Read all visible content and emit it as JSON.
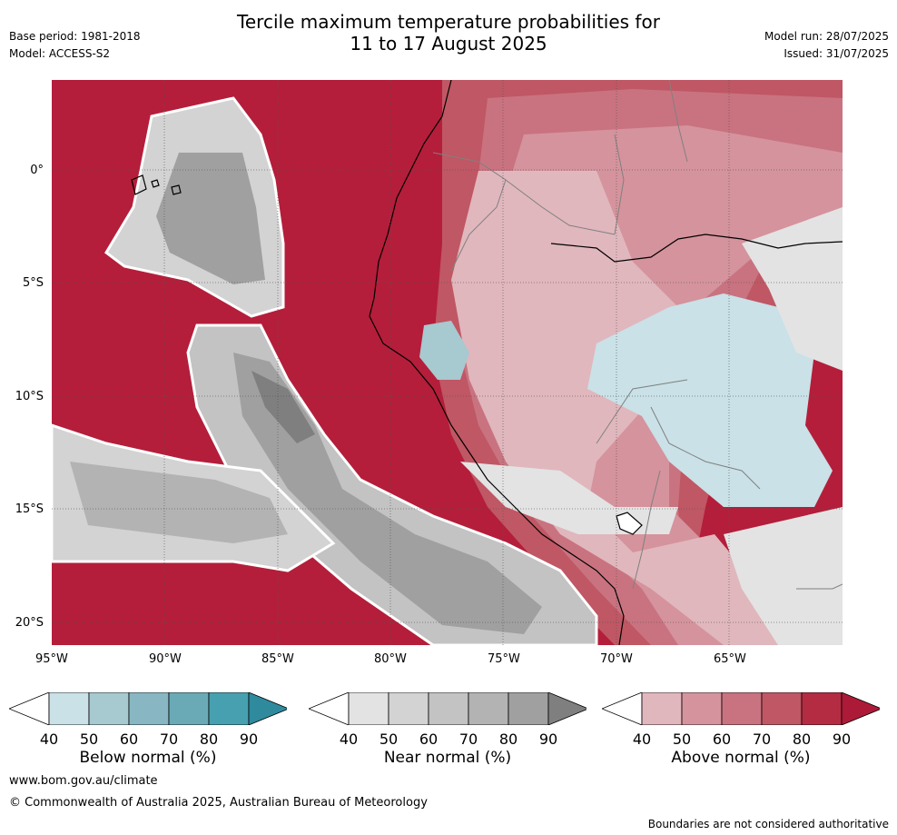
{
  "header": {
    "title_line1": "Tercile maximum temperature probabilities for",
    "title_line2": "11 to 17 August 2025",
    "base_period": "Base period: 1981-2018",
    "model": "Model: ACCESS-S2",
    "model_run": "Model run: 28/07/2025",
    "issued": "Issued: 31/07/2025"
  },
  "map": {
    "lon_labels": [
      "95°W",
      "90°W",
      "85°W",
      "80°W",
      "75°W",
      "70°W",
      "65°W"
    ],
    "lat_labels": [
      "0°",
      "5°S",
      "10°S",
      "15°S",
      "20°S"
    ]
  },
  "colorbars": [
    {
      "label": "Below normal (%)",
      "ticks": [
        "40",
        "50",
        "60",
        "70",
        "80",
        "90"
      ],
      "colors": [
        "#ffffff",
        "#c9e1e7",
        "#a7c9d0",
        "#88b7c3",
        "#6aaab6",
        "#47a0b0",
        "#2f8a9e"
      ]
    },
    {
      "label": "Near normal (%)",
      "ticks": [
        "40",
        "50",
        "60",
        "70",
        "80",
        "90"
      ],
      "colors": [
        "#ffffff",
        "#e3e3e3",
        "#d3d3d3",
        "#c3c3c3",
        "#b3b3b3",
        "#a0a0a0",
        "#7f7f7f"
      ]
    },
    {
      "label": "Above normal (%)",
      "ticks": [
        "40",
        "50",
        "60",
        "70",
        "80",
        "90"
      ],
      "colors": [
        "#ffffff",
        "#e0b7bd",
        "#d5939d",
        "#c97380",
        "#c05764",
        "#b42c42",
        "#ad1a37"
      ]
    }
  ],
  "footer": {
    "website": "www.bom.gov.au/climate",
    "copyright": "© Commonwealth of Australia 2025, Australian Bureau of Meteorology",
    "disclaimer": "Boundaries are not considered authoritative"
  }
}
